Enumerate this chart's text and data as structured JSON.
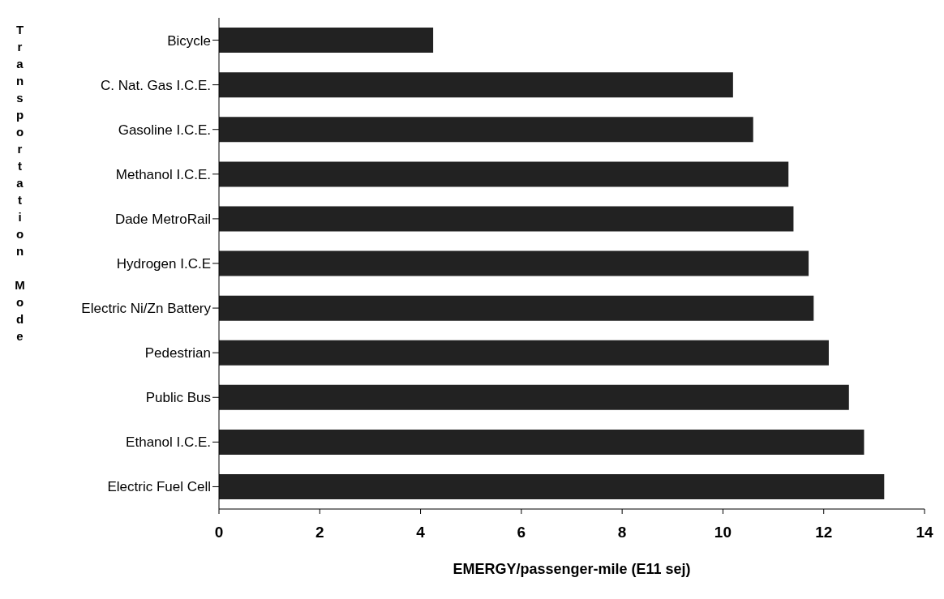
{
  "chart_data": {
    "type": "bar",
    "orientation": "horizontal",
    "xlabel": "EMERGY/passenger-mile (E11 sej)",
    "ylabel": "Transportation Mode",
    "categories": [
      "Bicycle",
      "C. Nat. Gas I.C.E.",
      "Gasoline I.C.E.",
      "Methanol I.C.E.",
      "Dade MetroRail",
      "Hydrogen I.C.E",
      "Electric Ni/Zn Battery",
      "Pedestrian",
      "Public Bus",
      "Ethanol I.C.E.",
      "Electric Fuel Cell"
    ],
    "values": [
      4.25,
      10.2,
      10.6,
      11.3,
      11.4,
      11.7,
      11.8,
      12.1,
      12.5,
      12.8,
      13.2
    ],
    "color": "#222222",
    "xlim": [
      0,
      14
    ],
    "xticks": [
      0,
      2,
      4,
      6,
      8,
      10,
      12,
      14
    ],
    "grid": false,
    "legend": false
  }
}
